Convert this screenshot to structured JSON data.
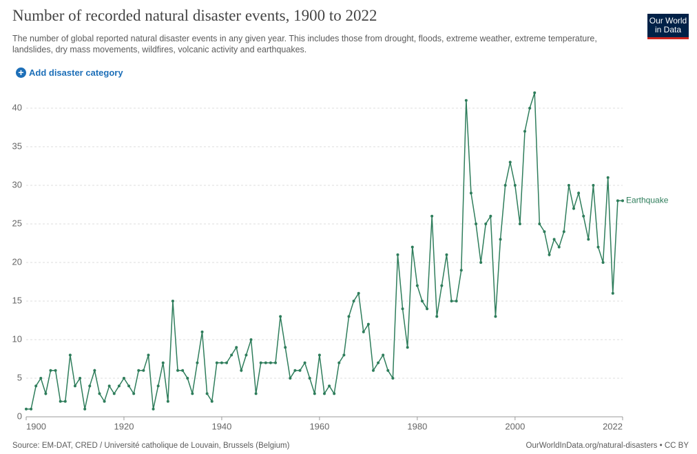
{
  "logo": "Our World in Data",
  "button": "Add disaster category",
  "source": "Source: EM-DAT, CRED / Université catholique de Louvain, Brussels (Belgium)",
  "url": "OurWorldInData.org/natural-disasters • CC BY",
  "chart_data": {
    "type": "line",
    "title": "Number of recorded natural disaster events, 1900 to 2022",
    "subtitle": "The number of global reported natural disaster events in any given year. This includes those from drought, floods, extreme weather, extreme temperature, landslides, dry mass movements, wildfires, volcanic activity and earthquakes.",
    "x": [
      1900,
      1901,
      1902,
      1903,
      1904,
      1905,
      1906,
      1907,
      1908,
      1909,
      1910,
      1911,
      1912,
      1913,
      1914,
      1915,
      1916,
      1917,
      1918,
      1919,
      1920,
      1921,
      1922,
      1923,
      1924,
      1925,
      1926,
      1927,
      1928,
      1929,
      1930,
      1931,
      1932,
      1933,
      1934,
      1935,
      1936,
      1937,
      1938,
      1939,
      1940,
      1941,
      1942,
      1943,
      1944,
      1945,
      1946,
      1947,
      1948,
      1949,
      1950,
      1951,
      1952,
      1953,
      1954,
      1955,
      1956,
      1957,
      1958,
      1959,
      1960,
      1961,
      1962,
      1963,
      1964,
      1965,
      1966,
      1967,
      1968,
      1969,
      1970,
      1971,
      1972,
      1973,
      1974,
      1975,
      1976,
      1977,
      1978,
      1979,
      1980,
      1981,
      1982,
      1983,
      1984,
      1985,
      1986,
      1987,
      1988,
      1989,
      1990,
      1991,
      1992,
      1993,
      1994,
      1995,
      1996,
      1997,
      1998,
      1999,
      2000,
      2001,
      2002,
      2003,
      2004,
      2005,
      2006,
      2007,
      2008,
      2009,
      2010,
      2011,
      2012,
      2013,
      2014,
      2015,
      2016,
      2017,
      2018,
      2019,
      2020,
      2021,
      2022
    ],
    "series": [
      {
        "name": "Earthquake",
        "color": "#2e7d5b",
        "values": [
          1,
          1,
          4,
          5,
          3,
          6,
          6,
          2,
          2,
          8,
          4,
          5,
          1,
          4,
          6,
          3,
          2,
          4,
          3,
          4,
          5,
          4,
          3,
          6,
          6,
          8,
          1,
          4,
          7,
          2,
          15,
          6,
          6,
          5,
          3,
          7,
          11,
          3,
          2,
          7,
          7,
          7,
          8,
          9,
          6,
          8,
          10,
          3,
          7,
          7,
          7,
          7,
          13,
          9,
          5,
          6,
          6,
          7,
          5,
          3,
          8,
          3,
          4,
          3,
          7,
          8,
          13,
          15,
          16,
          11,
          12,
          6,
          7,
          8,
          6,
          5,
          21,
          14,
          9,
          22,
          17,
          15,
          14,
          26,
          13,
          17,
          21,
          15,
          15,
          19,
          41,
          29,
          25,
          20,
          25,
          26,
          13,
          23,
          30,
          33,
          30,
          25,
          37,
          40,
          42,
          25,
          24,
          21,
          23,
          22,
          24,
          30,
          27,
          29,
          26,
          23,
          30,
          22,
          20,
          31,
          16,
          28,
          28
        ]
      }
    ],
    "xlim": [
      1900,
      2022
    ],
    "xticks": [
      1900,
      1920,
      1940,
      1960,
      1980,
      2000,
      2022
    ],
    "ylim": [
      0,
      40
    ],
    "yticks": [
      0,
      5,
      10,
      15,
      20,
      25,
      30,
      35,
      40
    ],
    "grid": true
  }
}
